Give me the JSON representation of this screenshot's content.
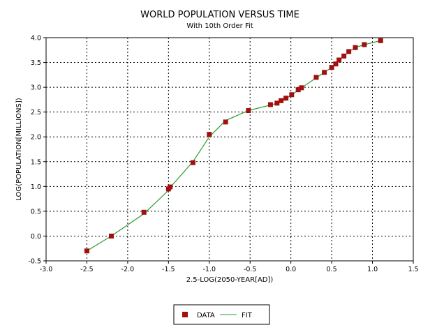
{
  "chart_data": {
    "type": "scatter",
    "title": "WORLD POPULATION VERSUS TIME",
    "subtitle": "With 10th Order Fit",
    "xlabel": "2.5-LOG(2050-YEAR[AD])",
    "ylabel": "LOG(POPULATION[MILLIONS])",
    "xlim": [
      -3.0,
      1.5
    ],
    "ylim": [
      -0.5,
      4.0
    ],
    "grid": true,
    "x_ticks": [
      "-3.0",
      "-2.5",
      "-2.0",
      "-1.5",
      "-1.0",
      "-0.5",
      "0.0",
      "0.5",
      "1.0",
      "1.5"
    ],
    "y_ticks": [
      "-0.5",
      "0.0",
      "0.5",
      "1.0",
      "1.5",
      "2.0",
      "2.5",
      "3.0",
      "3.5",
      "4.0"
    ],
    "legend_position": "bottom-center",
    "series": [
      {
        "name": "DATA",
        "kind": "markers",
        "color": "#a01010",
        "x": [
          -2.5,
          -2.2,
          -1.8,
          -1.5,
          -1.48,
          -1.2,
          -1.0,
          -0.8,
          -0.52,
          -0.25,
          -0.17,
          -0.12,
          -0.06,
          0.01,
          0.09,
          0.13,
          0.31,
          0.41,
          0.5,
          0.55,
          0.59,
          0.65,
          0.71,
          0.79,
          0.9,
          1.1
        ],
        "y": [
          -0.3,
          0.0,
          0.48,
          0.95,
          0.99,
          1.48,
          2.05,
          2.3,
          2.53,
          2.65,
          2.68,
          2.73,
          2.78,
          2.85,
          2.95,
          2.99,
          3.2,
          3.3,
          3.4,
          3.47,
          3.55,
          3.63,
          3.72,
          3.8,
          3.86,
          3.94
        ]
      },
      {
        "name": "FIT",
        "kind": "line",
        "color": "#2a9a2a",
        "x": [
          -2.5,
          -2.2,
          -1.8,
          -1.5,
          -1.48,
          -1.2,
          -1.0,
          -0.8,
          -0.52,
          -0.25,
          -0.17,
          -0.12,
          -0.06,
          0.01,
          0.09,
          0.13,
          0.31,
          0.41,
          0.5,
          0.55,
          0.59,
          0.65,
          0.71,
          0.79,
          0.9,
          1.1
        ],
        "y": [
          -0.3,
          0.0,
          0.45,
          0.92,
          0.98,
          1.5,
          2.0,
          2.33,
          2.53,
          2.64,
          2.68,
          2.72,
          2.77,
          2.85,
          2.94,
          2.99,
          3.19,
          3.3,
          3.4,
          3.47,
          3.54,
          3.63,
          3.72,
          3.8,
          3.86,
          3.94
        ]
      }
    ]
  }
}
